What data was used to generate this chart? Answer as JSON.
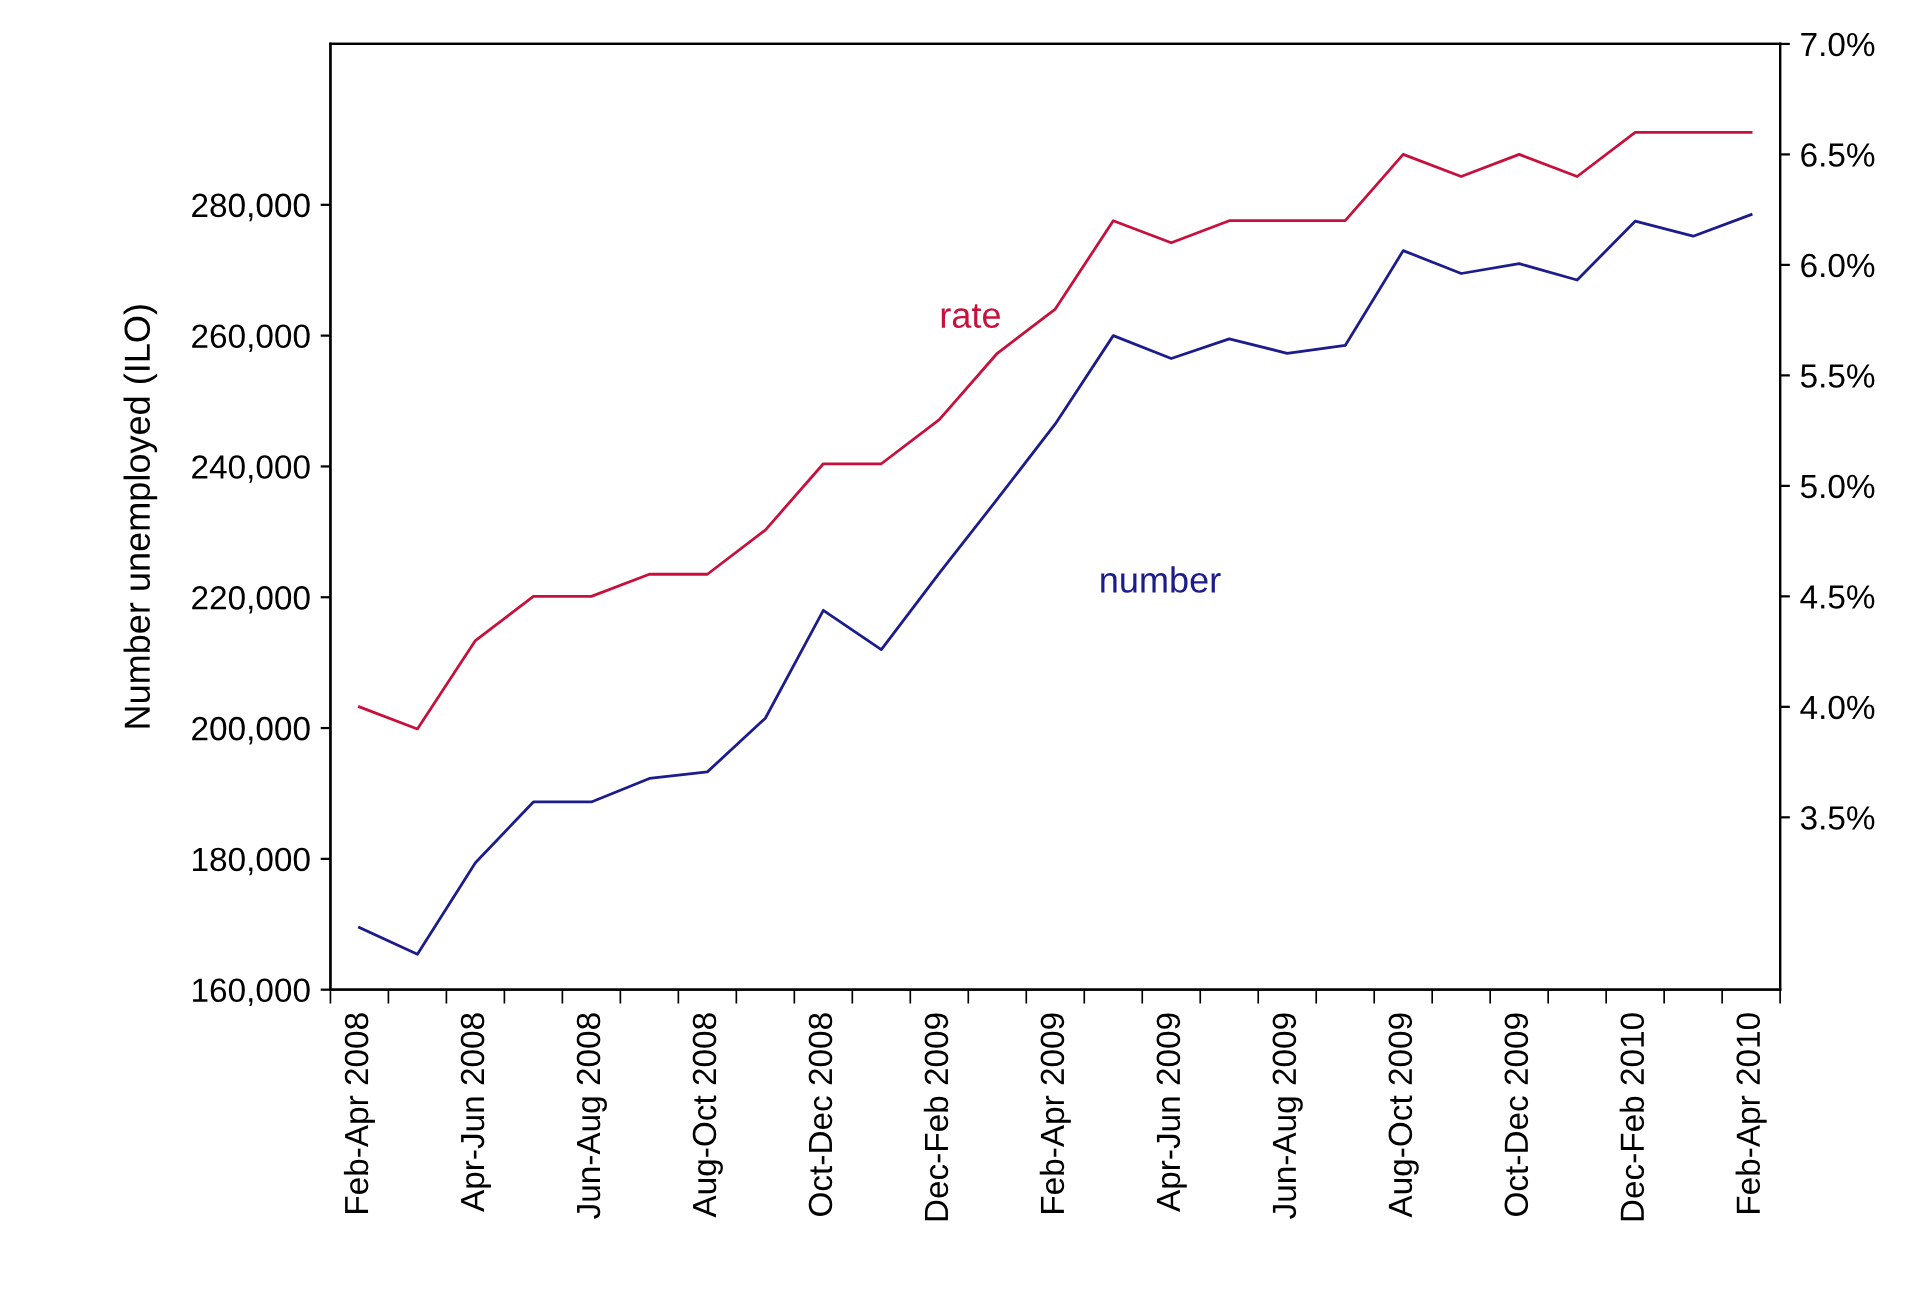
{
  "chart_data": {
    "type": "line",
    "ylabel": "Number unemployed (ILO)",
    "categories": [
      "Feb-Apr 2008",
      null,
      "Apr-Jun 2008",
      null,
      "Jun-Aug 2008",
      null,
      "Aug-Oct 2008",
      null,
      "Oct-Dec 2008",
      null,
      "Dec-Feb 2009",
      null,
      "Feb-Apr 2009",
      null,
      "Apr-Jun 2009",
      null,
      "Jun-Aug 2009",
      null,
      "Aug-Oct 2009",
      null,
      "Oct-Dec 2009",
      null,
      "Dec-Feb 2010",
      null,
      "Feb-Apr 2010"
    ],
    "series": [
      {
        "name": "rate",
        "color": "#c8103c",
        "axis": "y2",
        "values": [
          4.0,
          3.9,
          4.3,
          4.5,
          4.5,
          4.6,
          4.6,
          4.8,
          5.1,
          5.1,
          5.3,
          5.6,
          5.8,
          6.2,
          6.1,
          6.2,
          6.2,
          6.2,
          6.5,
          6.4,
          6.5,
          6.4,
          6.6,
          6.6,
          6.6
        ]
      },
      {
        "name": "number",
        "color": "#1c1c8c",
        "values": [
          169500,
          165400,
          179400,
          188700,
          188700,
          192300,
          193300,
          201500,
          218000,
          212000,
          223700,
          235000,
          246500,
          260000,
          256500,
          259500,
          257300,
          258500,
          273000,
          269500,
          271000,
          268500,
          277500,
          275200,
          278500
        ]
      }
    ],
    "ylim": [
      160000,
      304600
    ],
    "yticks": [
      {
        "value": 160000,
        "label": "160,000"
      },
      {
        "value": 180000,
        "label": "180,000"
      },
      {
        "value": 200000,
        "label": "200,000"
      },
      {
        "value": 220000,
        "label": "220,000"
      },
      {
        "value": 240000,
        "label": "240,000"
      },
      {
        "value": 260000,
        "label": "260,000"
      },
      {
        "value": 280000,
        "label": "280,000"
      }
    ],
    "y2lim": [
      2.72,
      7.0
    ],
    "y2ticks": [
      {
        "value": 3.5,
        "label": "3.5%"
      },
      {
        "value": 4.0,
        "label": "4.0%"
      },
      {
        "value": 4.5,
        "label": "4.5%"
      },
      {
        "value": 5.0,
        "label": "5.0%"
      },
      {
        "value": 5.5,
        "label": "5.5%"
      },
      {
        "value": 6.0,
        "label": "6.0%"
      },
      {
        "value": 6.5,
        "label": "6.5%"
      },
      {
        "value": 7.0,
        "label": "7.0%"
      }
    ],
    "grid": false,
    "legend": false,
    "marker": "none",
    "line_style": "solid"
  }
}
